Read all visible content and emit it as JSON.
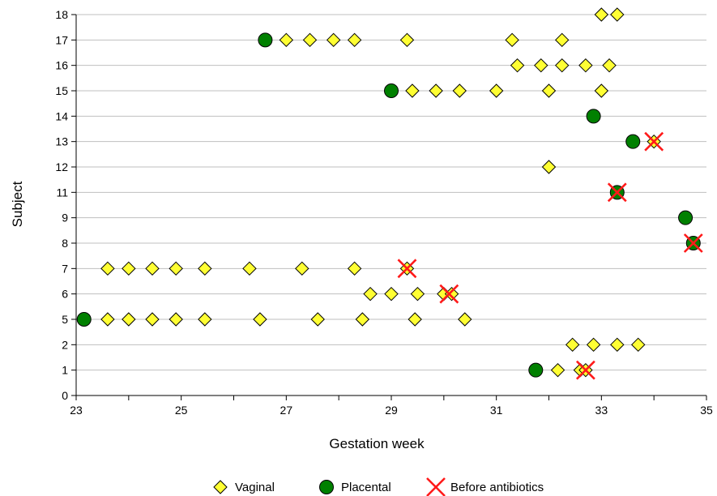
{
  "chart_data": {
    "type": "scatter",
    "xlabel": "Gestation week",
    "ylabel": "Subject",
    "xlim": [
      23,
      35
    ],
    "x_ticks": [
      "23",
      "25",
      "27",
      "29",
      "31",
      "33",
      "35"
    ],
    "y_ticks": [
      "0",
      "1",
      "2",
      "5",
      "6",
      "7",
      "8",
      "9",
      "11",
      "12",
      "13",
      "14",
      "15",
      "16",
      "17",
      "18"
    ],
    "grid": "horizontal",
    "legend_position": "bottom",
    "colors": {
      "vaginal_fill": "#ffff33",
      "placental_fill": "#008000",
      "antibiotics_mark": "#ff1a1a",
      "grid": "#bfbfbf"
    },
    "series": [
      {
        "name": "Vaginal",
        "marker": "diamond",
        "points": [
          {
            "x": 32.17,
            "y": "1"
          },
          {
            "x": 32.6,
            "y": "1"
          },
          {
            "x": 32.7,
            "y": "1"
          },
          {
            "x": 32.45,
            "y": "2"
          },
          {
            "x": 32.85,
            "y": "2"
          },
          {
            "x": 33.3,
            "y": "2"
          },
          {
            "x": 33.7,
            "y": "2"
          },
          {
            "x": 23.6,
            "y": "5"
          },
          {
            "x": 24.0,
            "y": "5"
          },
          {
            "x": 24.45,
            "y": "5"
          },
          {
            "x": 24.9,
            "y": "5"
          },
          {
            "x": 25.45,
            "y": "5"
          },
          {
            "x": 26.5,
            "y": "5"
          },
          {
            "x": 27.6,
            "y": "5"
          },
          {
            "x": 28.45,
            "y": "5"
          },
          {
            "x": 29.45,
            "y": "5"
          },
          {
            "x": 30.4,
            "y": "5"
          },
          {
            "x": 28.6,
            "y": "6"
          },
          {
            "x": 29.0,
            "y": "6"
          },
          {
            "x": 29.5,
            "y": "6"
          },
          {
            "x": 30.0,
            "y": "6"
          },
          {
            "x": 30.15,
            "y": "6"
          },
          {
            "x": 23.6,
            "y": "7"
          },
          {
            "x": 24.0,
            "y": "7"
          },
          {
            "x": 24.45,
            "y": "7"
          },
          {
            "x": 24.9,
            "y": "7"
          },
          {
            "x": 25.45,
            "y": "7"
          },
          {
            "x": 26.3,
            "y": "7"
          },
          {
            "x": 27.3,
            "y": "7"
          },
          {
            "x": 28.3,
            "y": "7"
          },
          {
            "x": 29.3,
            "y": "7"
          },
          {
            "x": 32.0,
            "y": "12"
          },
          {
            "x": 34.0,
            "y": "13"
          },
          {
            "x": 29.4,
            "y": "15"
          },
          {
            "x": 29.85,
            "y": "15"
          },
          {
            "x": 30.3,
            "y": "15"
          },
          {
            "x": 31.0,
            "y": "15"
          },
          {
            "x": 32.0,
            "y": "15"
          },
          {
            "x": 33.0,
            "y": "15"
          },
          {
            "x": 31.4,
            "y": "16"
          },
          {
            "x": 31.85,
            "y": "16"
          },
          {
            "x": 32.25,
            "y": "16"
          },
          {
            "x": 32.7,
            "y": "16"
          },
          {
            "x": 33.15,
            "y": "16"
          },
          {
            "x": 27.0,
            "y": "17"
          },
          {
            "x": 27.45,
            "y": "17"
          },
          {
            "x": 27.9,
            "y": "17"
          },
          {
            "x": 28.3,
            "y": "17"
          },
          {
            "x": 29.3,
            "y": "17"
          },
          {
            "x": 31.3,
            "y": "17"
          },
          {
            "x": 32.25,
            "y": "17"
          },
          {
            "x": 33.0,
            "y": "18"
          },
          {
            "x": 33.3,
            "y": "18"
          }
        ]
      },
      {
        "name": "Placental",
        "marker": "circle",
        "points": [
          {
            "x": 31.75,
            "y": "1"
          },
          {
            "x": 23.15,
            "y": "5"
          },
          {
            "x": 34.75,
            "y": "8"
          },
          {
            "x": 34.6,
            "y": "9"
          },
          {
            "x": 33.3,
            "y": "11"
          },
          {
            "x": 33.6,
            "y": "13"
          },
          {
            "x": 32.85,
            "y": "14"
          },
          {
            "x": 29.0,
            "y": "15"
          },
          {
            "x": 26.6,
            "y": "17"
          }
        ]
      },
      {
        "name": "Before antibiotics",
        "marker": "x",
        "points": [
          {
            "x": 32.7,
            "y": "1"
          },
          {
            "x": 30.1,
            "y": "6"
          },
          {
            "x": 29.3,
            "y": "7"
          },
          {
            "x": 34.75,
            "y": "8"
          },
          {
            "x": 33.3,
            "y": "11"
          },
          {
            "x": 34.0,
            "y": "13"
          }
        ]
      }
    ]
  }
}
